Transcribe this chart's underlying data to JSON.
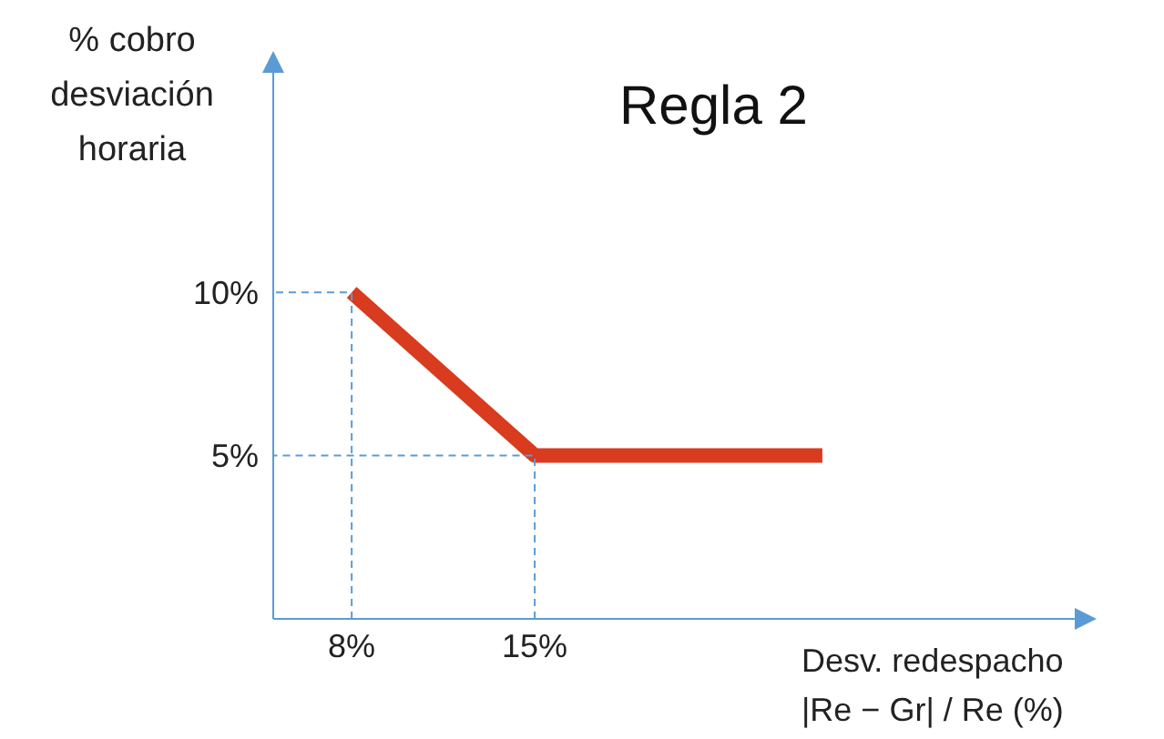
{
  "chart_data": {
    "type": "line",
    "title": "Regla 2",
    "xlabel": "Desv. redespacho |Re − Gr| / Re (%)",
    "ylabel": "% cobro desviación horaria",
    "x": [
      8,
      15,
      26
    ],
    "series": [
      {
        "color": "#d83b1e",
        "values": [
          10,
          5,
          5
        ]
      }
    ],
    "xlim": [
      5,
      36
    ],
    "ylim": [
      0,
      17
    ],
    "xticks": [
      {
        "value": 8,
        "label": "8%"
      },
      {
        "value": 15,
        "label": "15%"
      }
    ],
    "yticks": [
      {
        "value": 5,
        "label": "5%"
      },
      {
        "value": 10,
        "label": "10%"
      }
    ],
    "marker": "none",
    "line_style": "solid"
  }
}
